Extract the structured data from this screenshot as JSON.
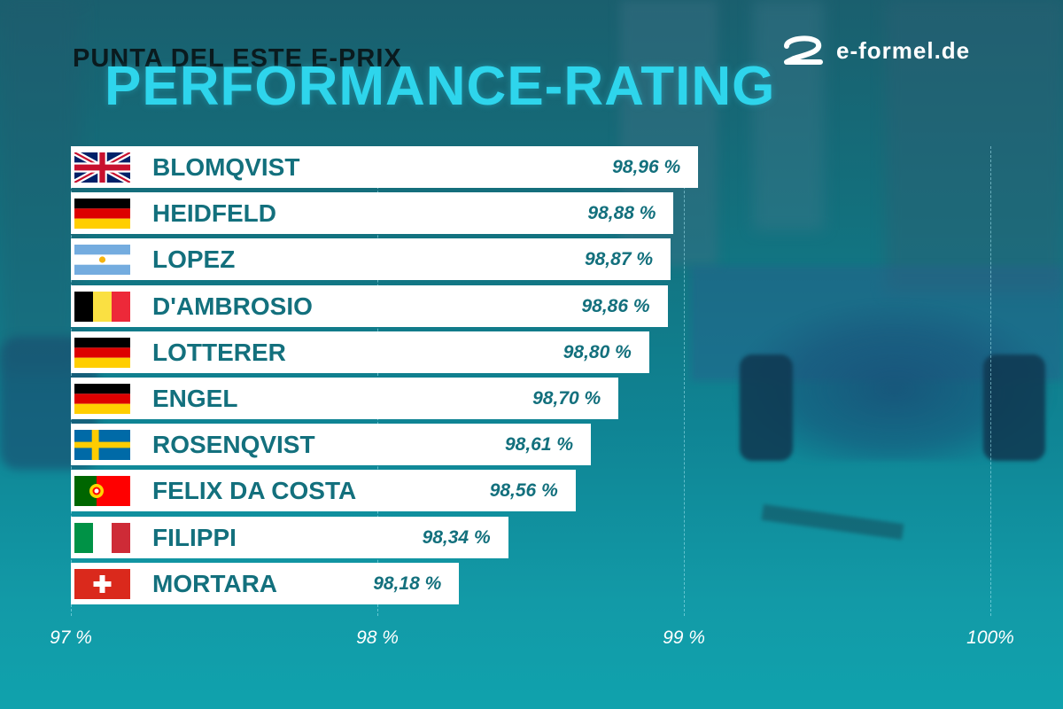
{
  "header": {
    "subtitle": "PUNTA DEL ESTE E-PRIX",
    "title": "PERFORMANCE-RATING"
  },
  "logo": {
    "text": "e-formel.de",
    "icon": "e-formel-logo-icon"
  },
  "colors": {
    "bar": "#ffffff",
    "label": "#13707d",
    "title_accent": "#2ed5ec",
    "grid": "#aaebf5"
  },
  "chart_data": {
    "type": "bar",
    "orientation": "horizontal",
    "title": "PERFORMANCE-RATING",
    "subtitle": "PUNTA DEL ESTE E-PRIX",
    "xlim": [
      97,
      100
    ],
    "x_ticks": [
      97,
      98,
      99,
      100
    ],
    "x_tick_labels": [
      "97 %",
      "98 %",
      "99 %",
      "100%"
    ],
    "grid": true,
    "categories": [
      "BLOMQVIST",
      "HEIDFELD",
      "LOPEZ",
      "D'AMBROSIO",
      "LOTTERER",
      "ENGEL",
      "ROSENQVIST",
      "FELIX DA COSTA",
      "FILIPPI",
      "MORTARA"
    ],
    "flags": [
      "uk-flag",
      "germany-flag",
      "argentina-flag",
      "belgium-flag",
      "germany-flag",
      "germany-flag",
      "sweden-flag",
      "portugal-flag",
      "italy-flag",
      "switzerland-flag"
    ],
    "values": [
      98.96,
      98.88,
      98.87,
      98.86,
      98.8,
      98.7,
      98.61,
      98.56,
      98.34,
      98.18
    ],
    "value_labels": [
      "98,96 %",
      "98,88 %",
      "98,87 %",
      "98,86 %",
      "98,80 %",
      "98,70 %",
      "98,61 %",
      "98,56 %",
      "98,34 %",
      "98,18 %"
    ]
  }
}
